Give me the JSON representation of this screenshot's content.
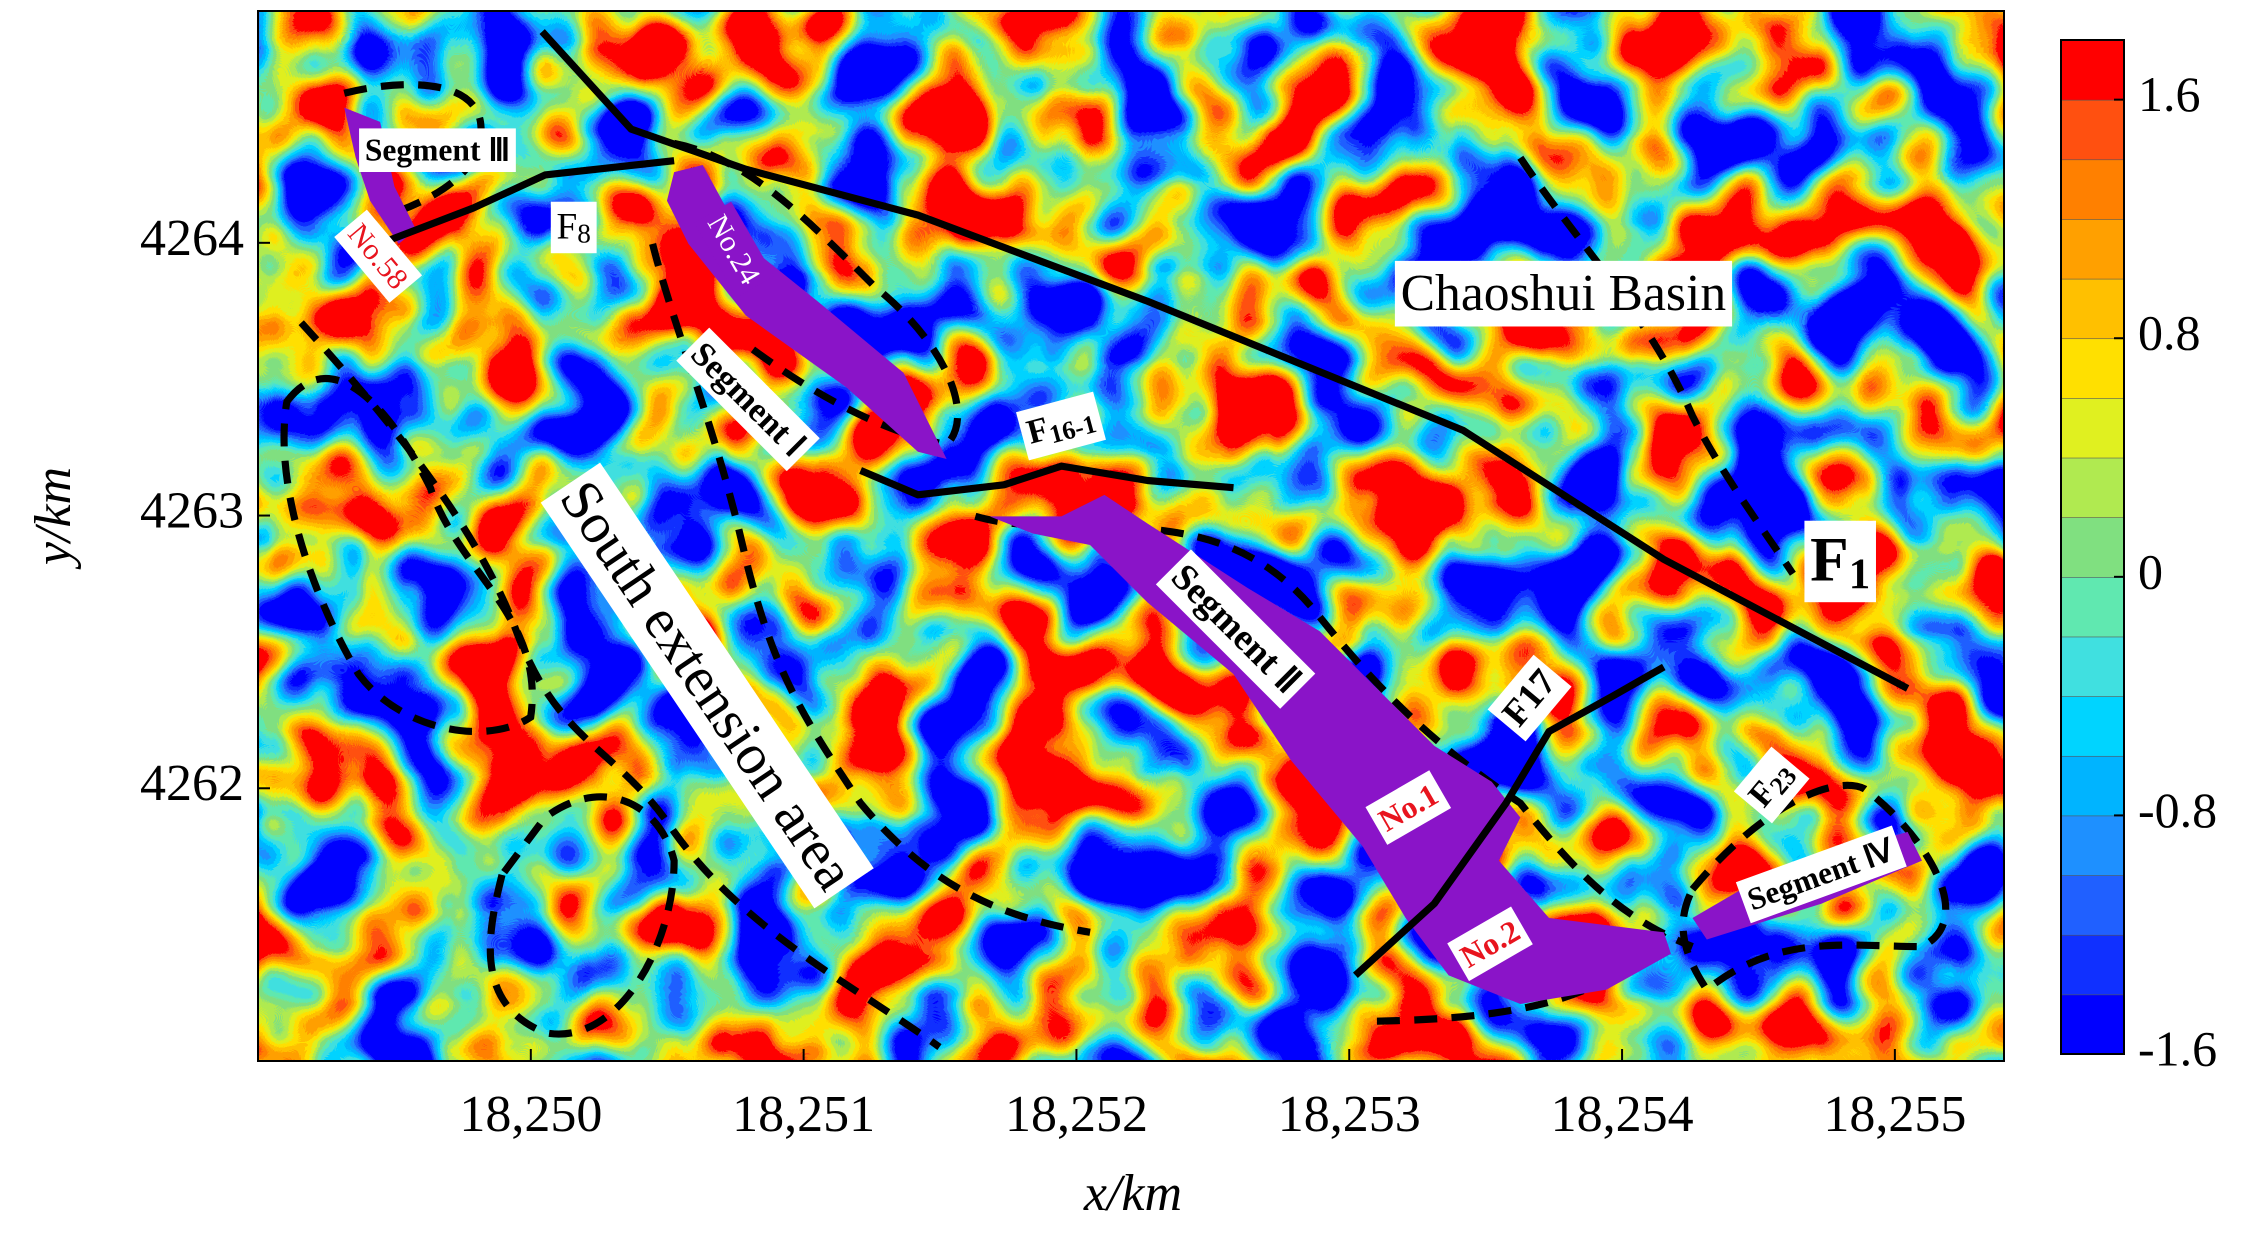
{
  "chart_data": {
    "type": "contour",
    "x_label": "x/km",
    "y_label": "y/km",
    "xlim": [
      18249.0,
      18255.4
    ],
    "ylim": [
      4261.0,
      4264.85
    ],
    "xticks": [
      {
        "value": 18250,
        "label": "18,250"
      },
      {
        "value": 18251,
        "label": "18,251"
      },
      {
        "value": 18252,
        "label": "18,252"
      },
      {
        "value": 18253,
        "label": "18,253"
      },
      {
        "value": 18254,
        "label": "18,254"
      },
      {
        "value": 18255,
        "label": "18,255"
      }
    ],
    "yticks": [
      4262,
      4263,
      4264
    ],
    "clim": [
      -1.6,
      1.8
    ],
    "cticks": [
      -1.6,
      -0.8,
      0,
      0.8,
      1.6
    ],
    "colormap": [
      "#0000ff",
      "#1030ff",
      "#2060ff",
      "#1e90ff",
      "#00b4ff",
      "#00d4ff",
      "#40e0e0",
      "#60e8b0",
      "#80e080",
      "#b0ea50",
      "#e0f020",
      "#ffe000",
      "#ffc000",
      "#ffa000",
      "#ff8000",
      "#ff5010",
      "#ff0000"
    ],
    "annotations": [
      {
        "text": "Segment Ⅲ"
      },
      {
        "text": "No.58"
      },
      {
        "text": "F",
        "sub": "8"
      },
      {
        "text": "No.24"
      },
      {
        "text": "Segment Ⅰ"
      },
      {
        "text": "F",
        "sub": "16-1"
      },
      {
        "text": "Chaoshui Basin"
      },
      {
        "text": "South extension area"
      },
      {
        "text": "F",
        "sub": "1"
      },
      {
        "text": "Segment Ⅱ"
      },
      {
        "text": "F17"
      },
      {
        "text": "No.1"
      },
      {
        "text": "F",
        "sub": "23"
      },
      {
        "text": "No.2"
      },
      {
        "text": "Segment Ⅳ"
      }
    ]
  }
}
